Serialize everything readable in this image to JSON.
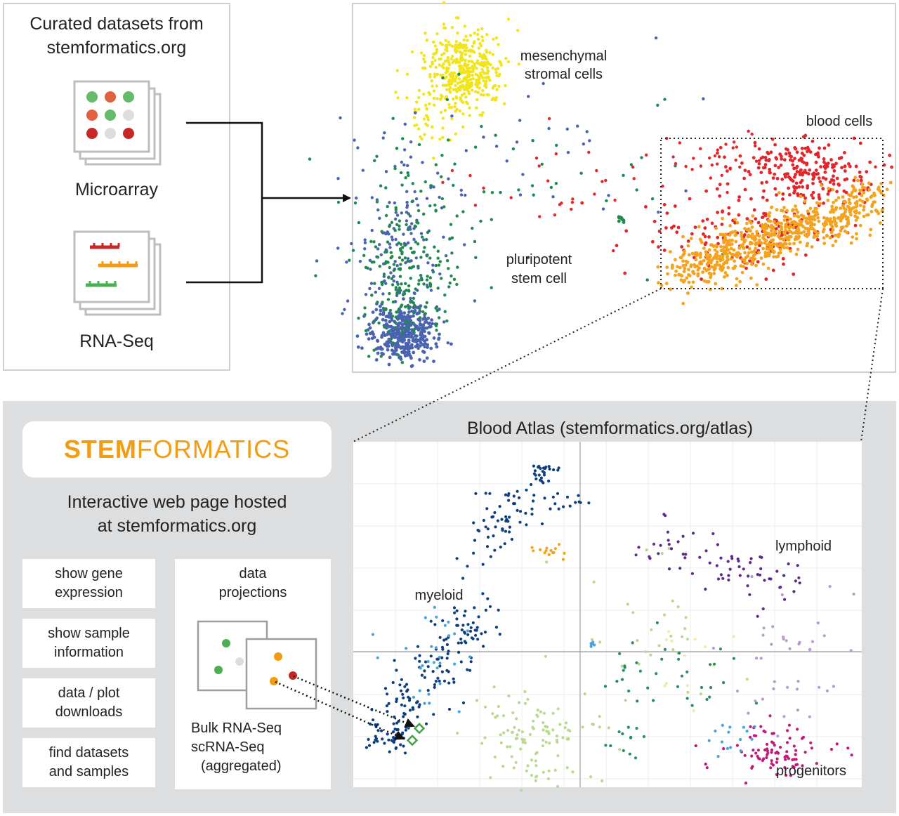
{
  "left_panel": {
    "title_line1": "Curated datasets from",
    "title_line2": "stemformatics.org",
    "microarray_label": "Microarray",
    "rnaseq_label": "RNA-Seq"
  },
  "top_scatter": {
    "labels": {
      "mesenchymal_line1": "mesenchymal",
      "mesenchymal_line2": "stromal cells",
      "blood_cells": "blood cells",
      "pluripotent_line1": "pluripotent",
      "pluripotent_line2": "stem cell"
    },
    "colors": {
      "yellow": "#f2e41b",
      "blue": "#4a63b0",
      "green": "#1f8a4c",
      "red": "#e2262b",
      "orange": "#f5a31f"
    }
  },
  "bottom": {
    "logo_strong": "STEM",
    "logo_light": "FORMATICS",
    "hosted_line1": "Interactive web page hosted",
    "hosted_line2": "at stemformatics.org",
    "buttons": [
      {
        "line1": "show gene",
        "line2": "expression"
      },
      {
        "line1": "show sample",
        "line2": "information"
      },
      {
        "line1": "data / plot",
        "line2": "downloads"
      },
      {
        "line1": "find datasets",
        "line2": "and samples"
      }
    ],
    "projections": {
      "title_line1": "data",
      "title_line2": "projections",
      "caption_line1": "Bulk RNA-Seq",
      "caption_line2": "scRNA-Seq",
      "caption_line3": "(aggregated)"
    },
    "atlas": {
      "title": "Blood Atlas (stemformatics.org/atlas)",
      "labels": {
        "myeloid": "myeloid",
        "lymphoid": "lymphoid",
        "progenitors": "progenitors"
      },
      "colors": {
        "navy": "#0d3f7f",
        "lightblue": "#4aa3d8",
        "orange": "#f5a31f",
        "palegreen": "#b8d98f",
        "teal": "#2a8a6a",
        "purple": "#5b2a8a",
        "lavender": "#b79ad0",
        "magenta": "#c2187a",
        "paleyellow": "#f3e9a6"
      }
    }
  },
  "dot_colors": {
    "green": "#4caf50",
    "red": "#e2262b",
    "grey": "#dddddd",
    "orange": "#f39c12",
    "darkred": "#c62828"
  }
}
